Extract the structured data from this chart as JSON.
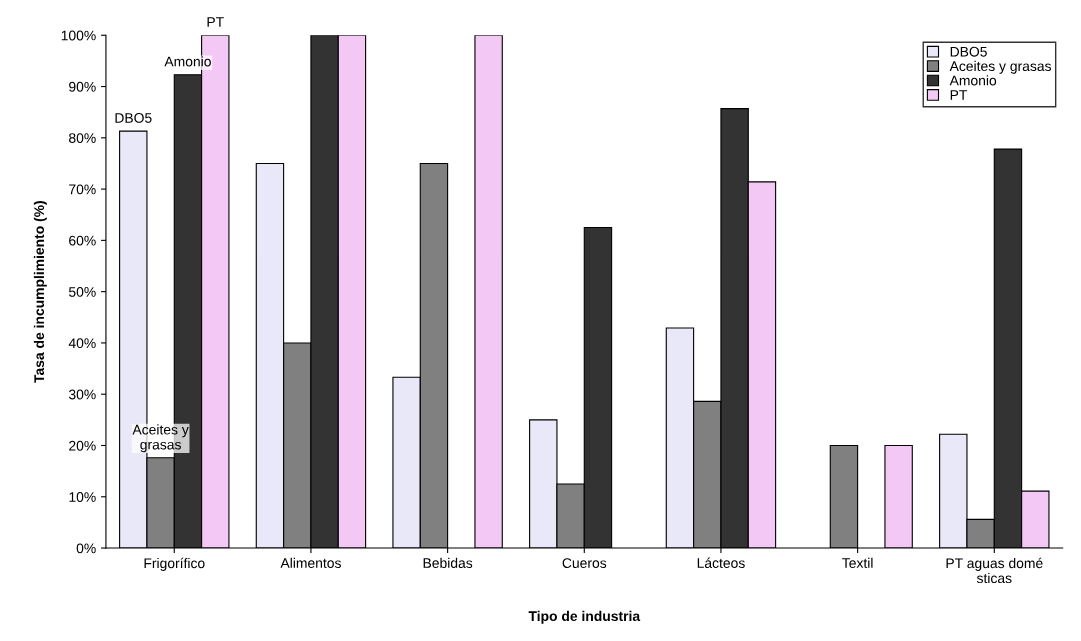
{
  "chart_data": {
    "type": "bar",
    "xlabel": "Tipo de industria",
    "ylabel": "Tasa de incumplimiento (%)",
    "categories": [
      "Frigorífico",
      "Alimentos",
      "Bebidas",
      "Cueros",
      "Lácteos",
      "Textil",
      "PT aguas domé\nsticas"
    ],
    "series": [
      {
        "name": "DBO5",
        "color": "#e8e8f8",
        "values": [
          81.3,
          75,
          33.3,
          25,
          42.9,
          null,
          22.2
        ]
      },
      {
        "name": "Aceites y grasas",
        "color": "#808080",
        "values": [
          17.6,
          40,
          75,
          12.5,
          28.6,
          20,
          5.6
        ]
      },
      {
        "name": "Amonio",
        "color": "#333333",
        "values": [
          92.3,
          100,
          null,
          62.5,
          85.7,
          null,
          77.8
        ]
      },
      {
        "name": "PT",
        "color": "#f4c8f4",
        "values": [
          100,
          100,
          100,
          null,
          71.4,
          20,
          11.1
        ]
      }
    ],
    "ylim": [
      0,
      100
    ],
    "yticks": [
      {
        "value": 0,
        "label": "0%"
      },
      {
        "value": 10,
        "label": "10%"
      },
      {
        "value": 20,
        "label": "20%"
      },
      {
        "value": 30,
        "label": "30%"
      },
      {
        "value": 40,
        "label": "40%"
      },
      {
        "value": 50,
        "label": "50%"
      },
      {
        "value": 60,
        "label": "60%"
      },
      {
        "value": 70,
        "label": "70%"
      },
      {
        "value": 80,
        "label": "80%"
      },
      {
        "value": 90,
        "label": "90%"
      },
      {
        "value": 100,
        "label": "100%"
      }
    ],
    "annotations": [
      "DBO5",
      "Aceites y\ngrasas",
      "Amonio",
      "PT"
    ],
    "grid": false,
    "legend": "top right"
  }
}
